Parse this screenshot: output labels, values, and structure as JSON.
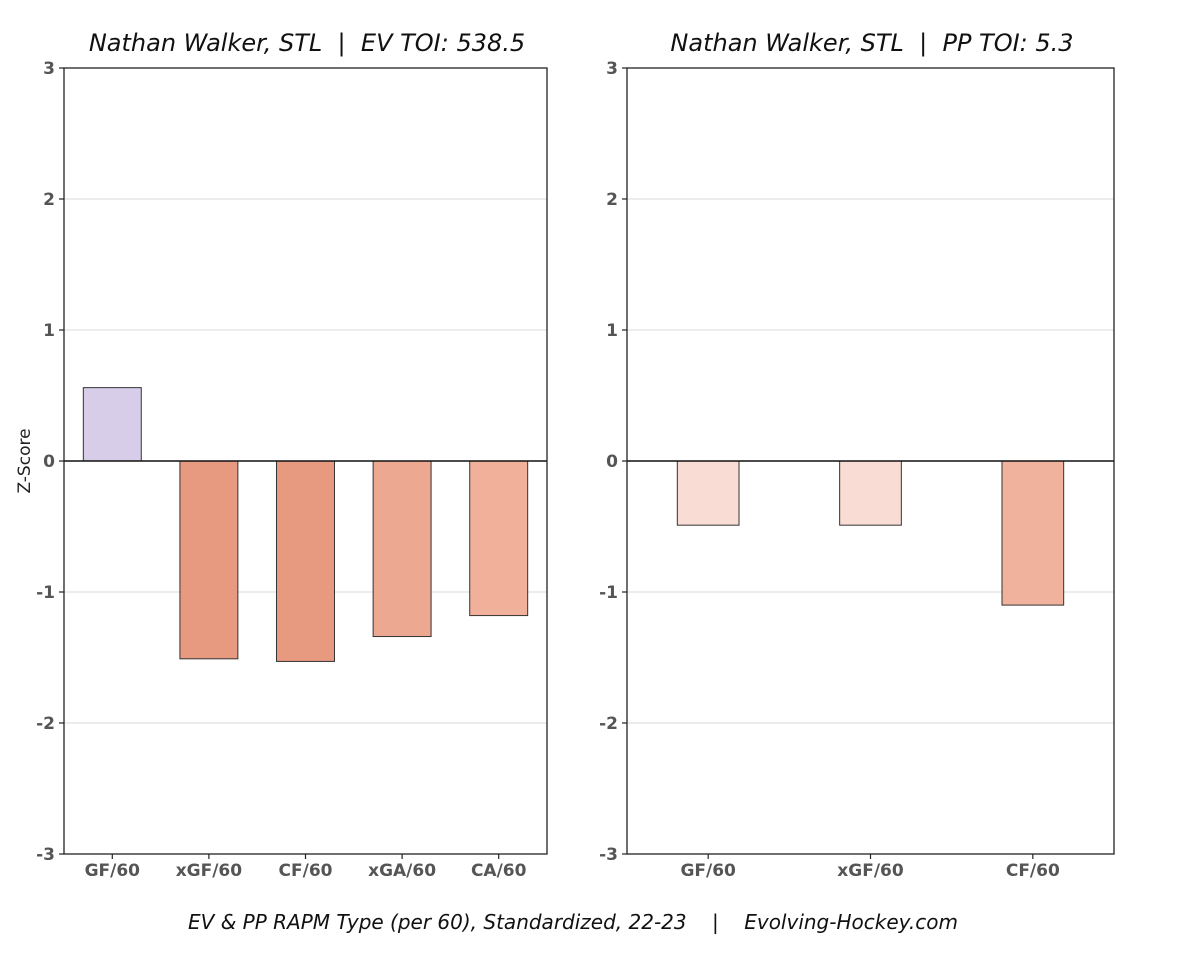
{
  "caption": "EV & PP RAPM Type (per 60), Standardized, 22-23    |    Evolving-Hockey.com",
  "colors": {
    "positive": "#d8cde9",
    "zero_line": "#111111",
    "grid": "#d9d9d9",
    "bar_edge": "#333333"
  },
  "chart_data": [
    {
      "type": "bar",
      "title": "Nathan Walker, STL  |  EV TOI: 538.5",
      "ylabel": "Z-Score",
      "xlabel": "",
      "ylim": [
        -3,
        3
      ],
      "yticks": [
        3,
        2,
        1,
        0,
        -1,
        -2,
        -3
      ],
      "grid": "horizontal",
      "categories": [
        "GF/60",
        "xGF/60",
        "CF/60",
        "xGA/60",
        "CA/60"
      ],
      "values": [
        0.56,
        -1.51,
        -1.53,
        -1.34,
        -1.18
      ],
      "bar_colors": [
        "#d8cde9",
        "#e89a80",
        "#e89a80",
        "#eca891",
        "#f0b09a"
      ]
    },
    {
      "type": "bar",
      "title": "Nathan Walker, STL  |  PP TOI: 5.3",
      "ylabel": "",
      "xlabel": "",
      "ylim": [
        -3,
        3
      ],
      "yticks": [
        3,
        2,
        1,
        0,
        -1,
        -2,
        -3
      ],
      "grid": "horizontal",
      "categories": [
        "GF/60",
        "xGF/60",
        "CF/60"
      ],
      "values": [
        -0.49,
        -0.49,
        -1.1
      ],
      "bar_colors": [
        "#f9dcd4",
        "#f9dcd4",
        "#f0b29c"
      ]
    }
  ]
}
